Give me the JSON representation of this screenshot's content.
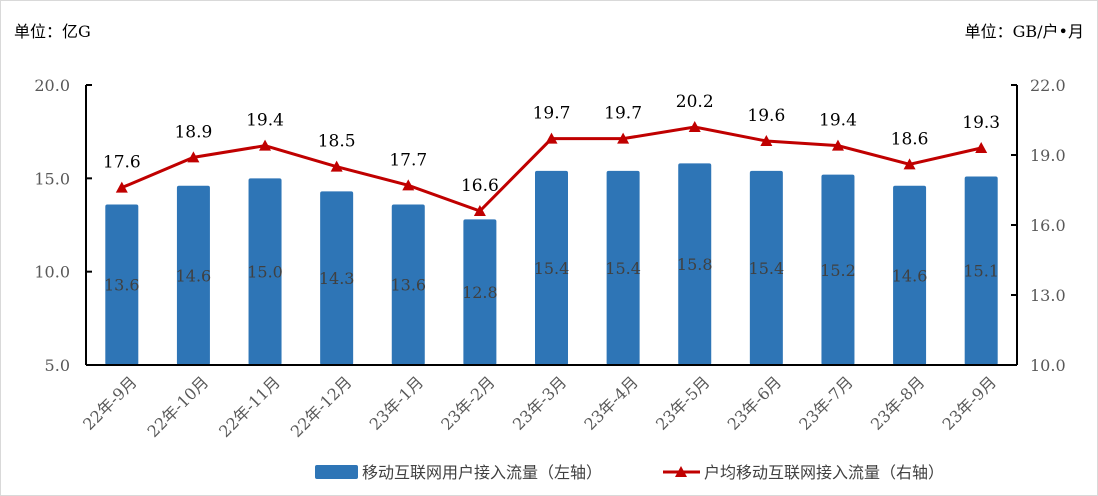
{
  "chart_data": {
    "type": "bar+line",
    "left_unit": "单位：亿G",
    "right_unit": "单位：GB/户•月",
    "categories": [
      "22年-9月",
      "22年-10月",
      "22年-11月",
      "22年-12月",
      "23年-1月",
      "23年-2月",
      "23年-3月",
      "23年-4月",
      "23年-5月",
      "23年-6月",
      "23年-7月",
      "23年-8月",
      "23年-9月"
    ],
    "left_axis": {
      "range": [
        5.0,
        20.0
      ],
      "ticks": [
        "5.0",
        "10.0",
        "15.0",
        "20.0"
      ]
    },
    "right_axis": {
      "range": [
        10.0,
        22.0
      ],
      "ticks": [
        "10.0",
        "13.0",
        "16.0",
        "19.0",
        "22.0"
      ]
    },
    "series": [
      {
        "name": "移动互联网用户接入流量（左轴）",
        "type": "bar",
        "axis": "left",
        "color": "#2e75b6",
        "values": [
          13.6,
          14.6,
          15.0,
          14.3,
          13.6,
          12.8,
          15.4,
          15.4,
          15.8,
          15.4,
          15.2,
          14.6,
          15.1
        ]
      },
      {
        "name": "户均移动互联网接入流量（右轴）",
        "type": "line",
        "axis": "right",
        "color": "#c00000",
        "marker": "triangle",
        "values": [
          17.6,
          18.9,
          19.4,
          18.5,
          17.7,
          16.6,
          19.7,
          19.7,
          20.2,
          19.6,
          19.4,
          18.6,
          19.3
        ]
      }
    ],
    "legend": "bottom",
    "grid": false
  }
}
